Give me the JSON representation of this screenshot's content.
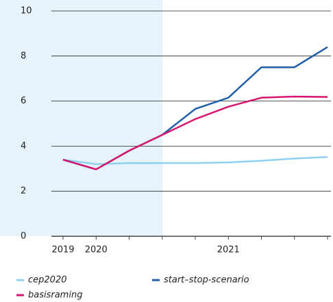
{
  "chart_data": {
    "type": "line",
    "categories": [
      "2019",
      "2020",
      null,
      null,
      null,
      "2021",
      null,
      null,
      null
    ],
    "series": [
      {
        "name": "cep2020",
        "color": "#8fd0f0",
        "values": [
          3.4,
          3.2,
          3.25,
          3.25,
          3.25,
          3.28,
          3.35,
          3.45,
          3.52
        ]
      },
      {
        "name": "start–stop-scenario",
        "color": "#1f5fa8",
        "values": [
          3.4,
          2.97,
          3.8,
          4.5,
          5.65,
          6.15,
          7.5,
          7.5,
          8.4
        ]
      },
      {
        "name": "basisraming",
        "color": "#d6166e",
        "values": [
          3.4,
          2.97,
          3.8,
          4.5,
          5.2,
          5.75,
          6.15,
          6.2,
          6.18
        ]
      }
    ],
    "ylim": [
      0,
      10
    ],
    "yticks": [
      0,
      2,
      4,
      6,
      8,
      10
    ],
    "grid": true
  }
}
